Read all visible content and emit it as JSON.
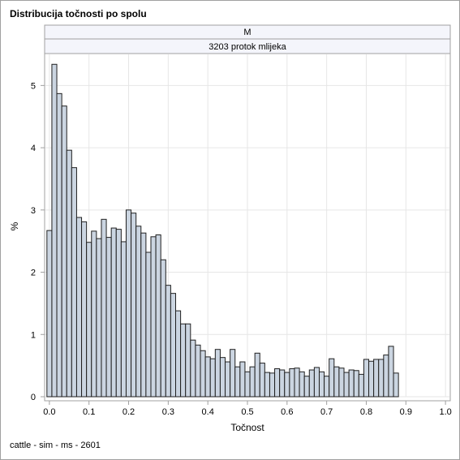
{
  "title": "Distribucija točnosti po spolu",
  "footnote": "cattle - sim - ms - 2601",
  "chart_data": {
    "type": "bar",
    "subtype": "histogram",
    "panel_labels": [
      "M",
      "3203 protok mlijeka"
    ],
    "xlabel": "Točnost",
    "ylabel": "%",
    "xlim": [
      -0.01,
      1.01
    ],
    "ylim": [
      0,
      5.5
    ],
    "xticks": [
      "0.0",
      "0.1",
      "0.2",
      "0.3",
      "0.4",
      "0.5",
      "0.6",
      "0.7",
      "0.8",
      "0.9",
      "1.0"
    ],
    "yticks": [
      "0",
      "1",
      "2",
      "3",
      "4",
      "5"
    ],
    "grid": true,
    "bin_width": 0.0125,
    "bin_start": -0.00625,
    "values": [
      2.67,
      5.34,
      4.87,
      4.67,
      3.96,
      3.68,
      2.88,
      2.81,
      2.48,
      2.66,
      2.54,
      2.85,
      2.56,
      2.71,
      2.69,
      2.49,
      3.0,
      2.95,
      2.74,
      2.63,
      2.32,
      2.57,
      2.6,
      2.2,
      1.79,
      1.66,
      1.38,
      1.17,
      1.17,
      0.91,
      0.83,
      0.74,
      0.64,
      0.61,
      0.76,
      0.63,
      0.56,
      0.76,
      0.48,
      0.56,
      0.4,
      0.48,
      0.7,
      0.54,
      0.39,
      0.38,
      0.45,
      0.43,
      0.39,
      0.45,
      0.46,
      0.4,
      0.33,
      0.43,
      0.47,
      0.4,
      0.33,
      0.61,
      0.48,
      0.46,
      0.39,
      0.43,
      0.42,
      0.36,
      0.6,
      0.57,
      0.6,
      0.6,
      0.67,
      0.81,
      0.38
    ]
  },
  "colors": {
    "bar_fill": "#cbd5e1",
    "bar_stroke": "#202020",
    "grid": "#e6e6e6",
    "axis": "#a0a0a0",
    "panel_header_fill": "#f4f5fb"
  }
}
